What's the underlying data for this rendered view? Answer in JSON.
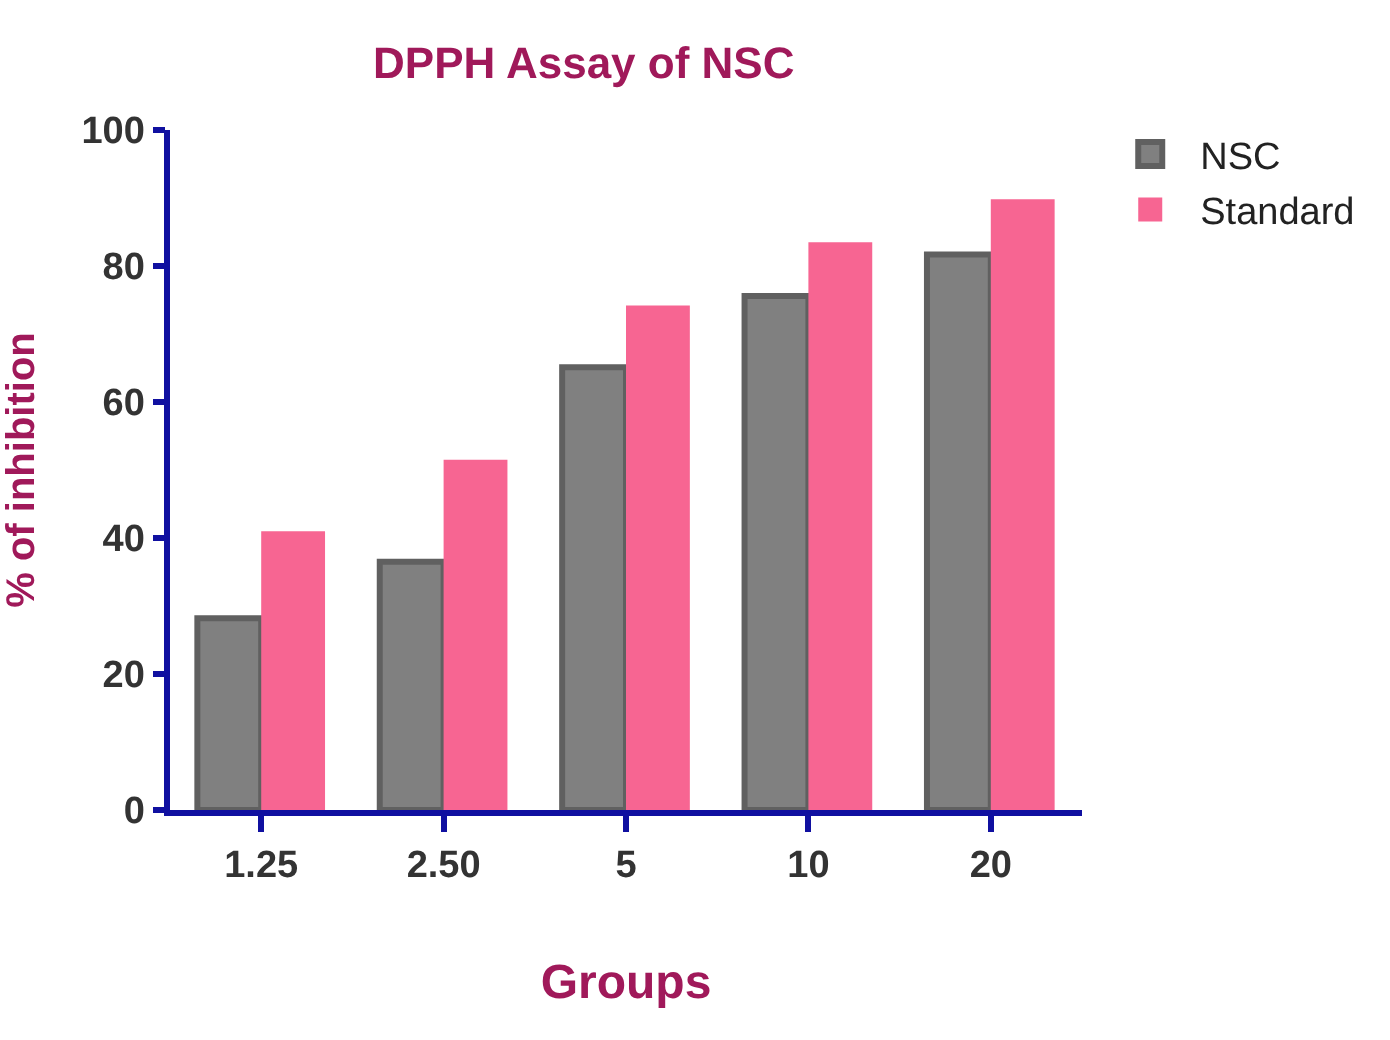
{
  "chart_data": {
    "type": "bar",
    "title": "DPPH Assay of NSC",
    "xlabel": "Groups",
    "ylabel": "% of inhibition",
    "categories": [
      "1.25",
      "2.50",
      "5",
      "10",
      "20"
    ],
    "series": [
      {
        "name": "NSC",
        "color": "#808080",
        "values": [
          28.2,
          36.5,
          65.1,
          75.6,
          81.7
        ]
      },
      {
        "name": "Standard",
        "color": "#f76592",
        "values": [
          41.0,
          51.5,
          74.2,
          83.5,
          89.8
        ]
      }
    ],
    "ylim": [
      0,
      100
    ],
    "yticks": [
      0,
      20,
      40,
      60,
      80,
      100
    ],
    "grid": false,
    "legend": "top right"
  }
}
